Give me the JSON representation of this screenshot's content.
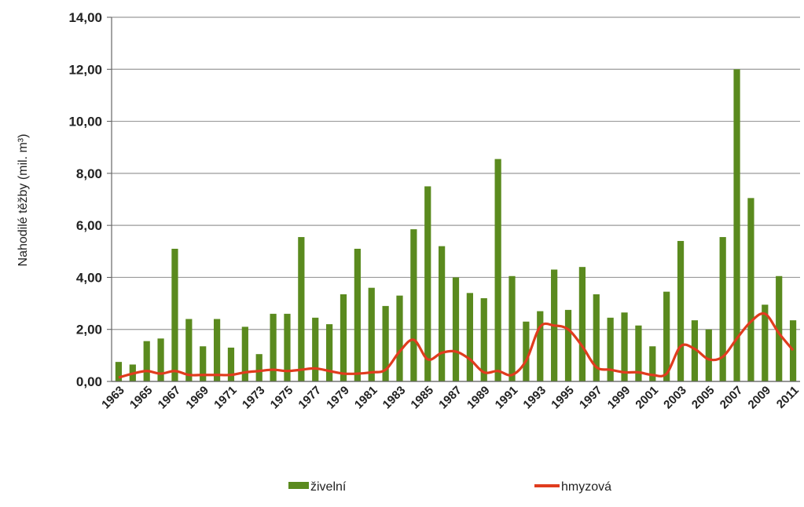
{
  "chart_data": {
    "type": "bar",
    "title": "",
    "xlabel": "",
    "ylabel": "Nahodilé těžby (mil. m³)",
    "ylim": [
      0,
      14
    ],
    "yticks": [
      "0,00",
      "2,00",
      "4,00",
      "6,00",
      "8,00",
      "10,00",
      "12,00",
      "14,00"
    ],
    "grid": true,
    "legend_position": "bottom",
    "x": [
      1963,
      1964,
      1965,
      1966,
      1967,
      1968,
      1969,
      1970,
      1971,
      1972,
      1973,
      1974,
      1975,
      1976,
      1977,
      1978,
      1979,
      1980,
      1981,
      1982,
      1983,
      1984,
      1985,
      1986,
      1987,
      1988,
      1989,
      1990,
      1991,
      1992,
      1993,
      1994,
      1995,
      1996,
      1997,
      1998,
      1999,
      2000,
      2001,
      2002,
      2003,
      2004,
      2005,
      2006,
      2007,
      2008,
      2009,
      2010,
      2011
    ],
    "xtick_labels": [
      "1963",
      "1965",
      "1967",
      "1969",
      "1971",
      "1973",
      "1975",
      "1977",
      "1979",
      "1981",
      "1983",
      "1985",
      "1987",
      "1989",
      "1991",
      "1993",
      "1995",
      "1997",
      "1999",
      "2001",
      "2003",
      "2005",
      "2007",
      "2009",
      "2011"
    ],
    "series": [
      {
        "name": "živelní",
        "kind": "bar",
        "color": "#5a8a1e",
        "values": [
          0.75,
          0.65,
          1.55,
          1.65,
          5.1,
          2.4,
          1.35,
          2.4,
          1.3,
          2.1,
          1.05,
          2.6,
          2.6,
          5.55,
          2.45,
          2.2,
          3.35,
          5.1,
          3.6,
          2.9,
          3.3,
          5.85,
          7.5,
          5.2,
          4.0,
          3.4,
          3.2,
          8.55,
          4.05,
          2.3,
          2.7,
          4.3,
          2.75,
          4.4,
          3.35,
          2.45,
          2.65,
          2.15,
          1.35,
          3.45,
          5.4,
          2.35,
          2.0,
          5.55,
          12.0,
          7.05,
          2.95,
          4.05,
          2.35
        ]
      },
      {
        "name": "hmyzová",
        "kind": "line",
        "color": "#e03c1e",
        "values": [
          0.15,
          0.3,
          0.4,
          0.3,
          0.4,
          0.25,
          0.25,
          0.25,
          0.25,
          0.35,
          0.4,
          0.45,
          0.4,
          0.45,
          0.5,
          0.4,
          0.3,
          0.3,
          0.35,
          0.45,
          1.15,
          1.6,
          0.85,
          1.1,
          1.15,
          0.85,
          0.35,
          0.4,
          0.25,
          0.8,
          2.1,
          2.15,
          2.0,
          1.35,
          0.55,
          0.45,
          0.35,
          0.35,
          0.25,
          0.3,
          1.35,
          1.25,
          0.85,
          0.95,
          1.65,
          2.3,
          2.6,
          1.85,
          1.2
        ]
      }
    ]
  }
}
